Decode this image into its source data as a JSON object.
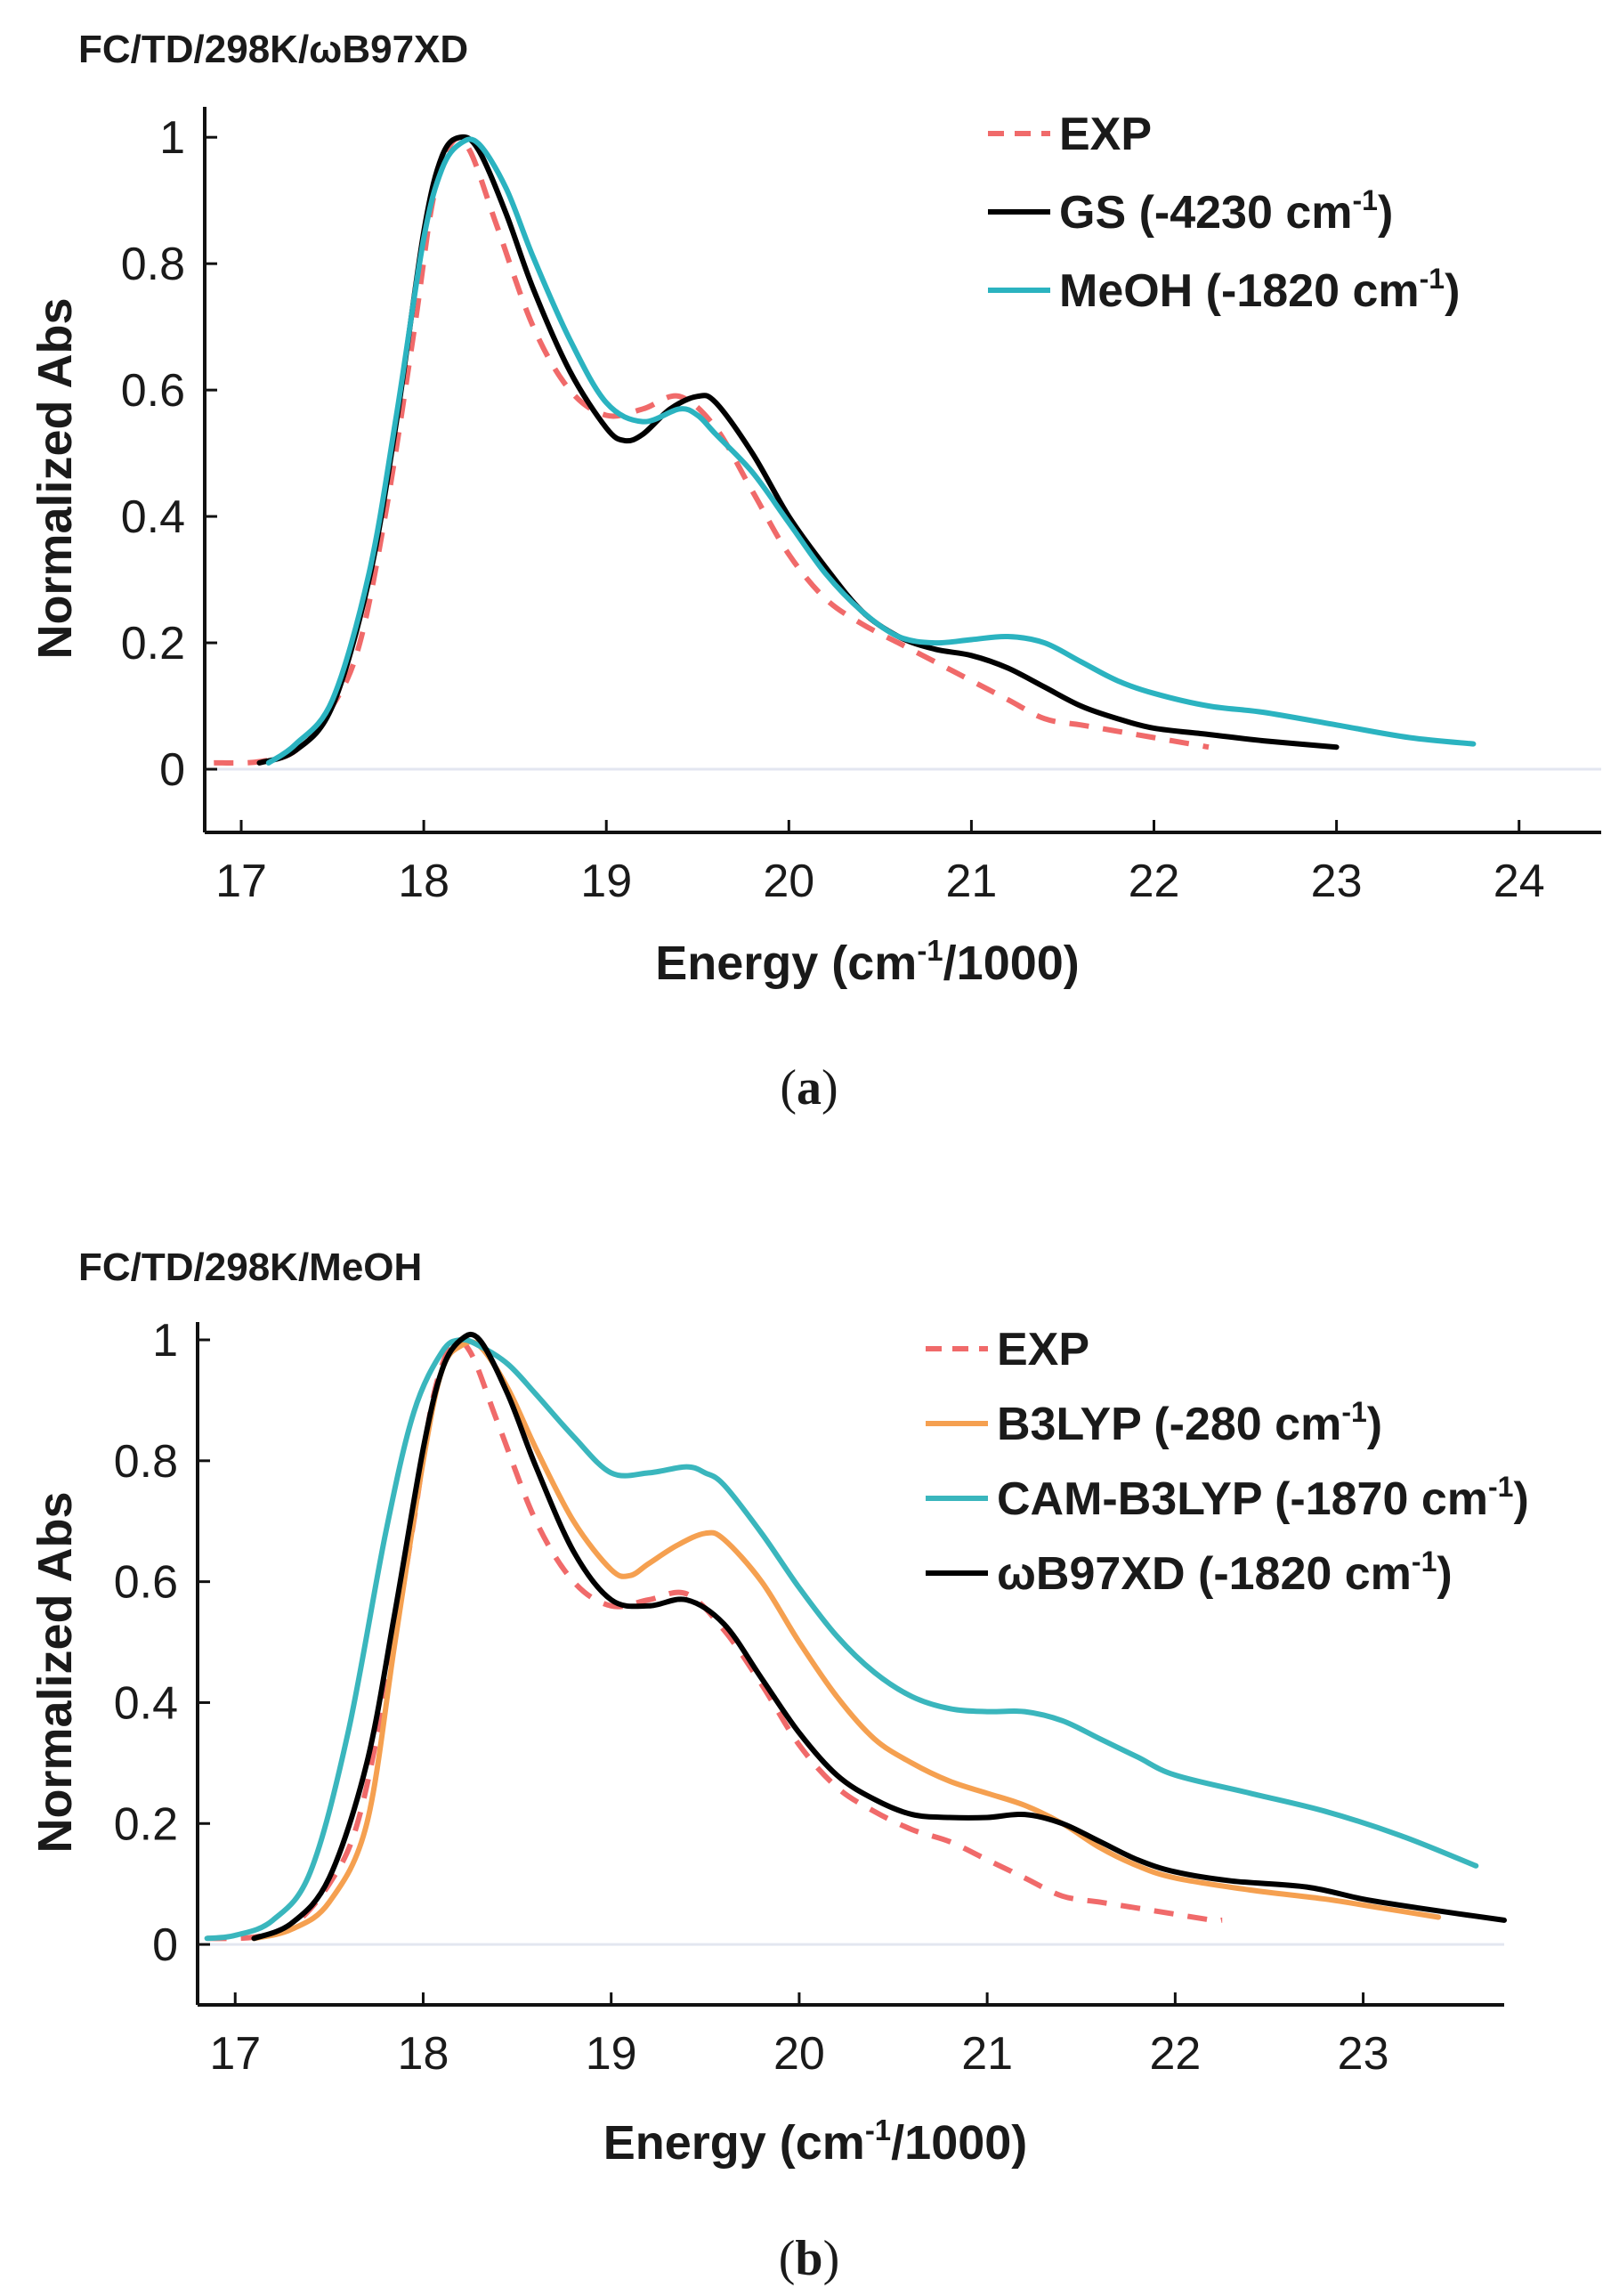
{
  "chart_data": [
    {
      "type": "line",
      "title": "FC/TD/298K/ωB97XD",
      "xlabel": "Energy (cm⁻¹/1000)",
      "ylabel": "Normalized Abs",
      "xlim": [
        16.8,
        24.45
      ],
      "ylim": [
        -0.1,
        1.02
      ],
      "xticks": [
        "17",
        "18",
        "19",
        "20",
        "21",
        "22",
        "23",
        "24"
      ],
      "yticks": [
        "0",
        "0.2",
        "0.4",
        "0.6",
        "0.8",
        "1"
      ],
      "legend": "top-right",
      "caption": "a",
      "series": [
        {
          "name": "EXP",
          "color": "#f06a6a",
          "dash": true,
          "x": [
            16.85,
            17.1,
            17.3,
            17.5,
            17.65,
            17.8,
            17.95,
            18.05,
            18.15,
            18.25,
            18.4,
            18.6,
            18.8,
            19.0,
            19.2,
            19.4,
            19.6,
            19.8,
            20.0,
            20.2,
            20.4,
            20.6,
            20.8,
            21.0,
            21.2,
            21.4,
            21.6,
            21.8,
            22.0,
            22.2,
            22.3
          ],
          "y": [
            0.01,
            0.012,
            0.03,
            0.1,
            0.2,
            0.42,
            0.7,
            0.9,
            0.99,
            0.98,
            0.86,
            0.7,
            0.6,
            0.56,
            0.57,
            0.59,
            0.54,
            0.44,
            0.34,
            0.27,
            0.23,
            0.2,
            0.17,
            0.14,
            0.11,
            0.08,
            0.07,
            0.06,
            0.05,
            0.04,
            0.035
          ]
        },
        {
          "name": "GS (-4230 cm⁻¹)",
          "color": "#000000",
          "dash": false,
          "x": [
            17.1,
            17.3,
            17.5,
            17.7,
            17.85,
            18.0,
            18.1,
            18.2,
            18.3,
            18.45,
            18.6,
            18.8,
            19.0,
            19.1,
            19.2,
            19.35,
            19.5,
            19.6,
            19.8,
            20.0,
            20.2,
            20.4,
            20.6,
            20.8,
            21.0,
            21.2,
            21.4,
            21.6,
            21.8,
            22.0,
            22.3,
            22.6,
            23.0
          ],
          "y": [
            0.01,
            0.03,
            0.1,
            0.3,
            0.55,
            0.85,
            0.97,
            1.0,
            0.98,
            0.88,
            0.76,
            0.63,
            0.54,
            0.52,
            0.53,
            0.57,
            0.59,
            0.58,
            0.5,
            0.4,
            0.32,
            0.25,
            0.21,
            0.19,
            0.18,
            0.16,
            0.13,
            0.1,
            0.08,
            0.065,
            0.055,
            0.045,
            0.035
          ]
        },
        {
          "name": "MeOH (-1820 cm⁻¹)",
          "color": "#2bb3c0",
          "dash": false,
          "x": [
            17.15,
            17.3,
            17.5,
            17.7,
            17.85,
            18.0,
            18.1,
            18.2,
            18.3,
            18.45,
            18.6,
            18.8,
            19.0,
            19.2,
            19.4,
            19.5,
            19.6,
            19.8,
            20.0,
            20.2,
            20.4,
            20.6,
            20.8,
            21.0,
            21.2,
            21.4,
            21.6,
            21.8,
            22.0,
            22.3,
            22.6,
            23.0,
            23.4,
            23.75
          ],
          "y": [
            0.01,
            0.04,
            0.11,
            0.31,
            0.56,
            0.84,
            0.95,
            0.99,
            0.99,
            0.92,
            0.81,
            0.68,
            0.58,
            0.55,
            0.57,
            0.56,
            0.53,
            0.47,
            0.39,
            0.31,
            0.25,
            0.21,
            0.2,
            0.205,
            0.21,
            0.2,
            0.17,
            0.14,
            0.12,
            0.1,
            0.09,
            0.07,
            0.05,
            0.04
          ]
        }
      ]
    },
    {
      "type": "line",
      "title": "FC/TD/298K/MeOH",
      "xlabel": "Energy (cm⁻¹/1000)",
      "ylabel": "Normalized Abs",
      "xlim": [
        16.8,
        23.75
      ],
      "ylim": [
        -0.1,
        1.0
      ],
      "xticks": [
        "17",
        "18",
        "19",
        "20",
        "21",
        "22",
        "23"
      ],
      "yticks": [
        "0",
        "0.2",
        "0.4",
        "0.6",
        "0.8",
        "1"
      ],
      "legend": "top-right",
      "caption": "b",
      "series": [
        {
          "name": "EXP",
          "color": "#f06a6a",
          "dash": true,
          "x": [
            16.85,
            17.1,
            17.3,
            17.5,
            17.65,
            17.8,
            17.95,
            18.05,
            18.15,
            18.25,
            18.4,
            18.6,
            18.8,
            19.0,
            19.2,
            19.4,
            19.6,
            19.8,
            20.0,
            20.2,
            20.4,
            20.6,
            20.8,
            21.0,
            21.2,
            21.4,
            21.6,
            21.8,
            22.0,
            22.2,
            22.25
          ],
          "y": [
            0.01,
            0.012,
            0.03,
            0.1,
            0.2,
            0.42,
            0.7,
            0.9,
            0.99,
            0.98,
            0.86,
            0.7,
            0.6,
            0.56,
            0.57,
            0.58,
            0.52,
            0.43,
            0.33,
            0.26,
            0.22,
            0.19,
            0.17,
            0.14,
            0.11,
            0.08,
            0.07,
            0.06,
            0.05,
            0.04,
            0.04
          ]
        },
        {
          "name": "B3LYP (-280 cm⁻¹)",
          "color": "#f5a050",
          "dash": false,
          "x": [
            17.1,
            17.3,
            17.5,
            17.7,
            17.85,
            18.0,
            18.1,
            18.2,
            18.3,
            18.45,
            18.6,
            18.8,
            19.0,
            19.1,
            19.2,
            19.35,
            19.5,
            19.6,
            19.8,
            20.0,
            20.2,
            20.4,
            20.6,
            20.8,
            21.0,
            21.2,
            21.4,
            21.6,
            21.8,
            22.0,
            22.4,
            22.8,
            23.1,
            23.4
          ],
          "y": [
            0.01,
            0.025,
            0.07,
            0.2,
            0.5,
            0.8,
            0.95,
            0.99,
            0.99,
            0.92,
            0.82,
            0.7,
            0.62,
            0.61,
            0.63,
            0.66,
            0.68,
            0.67,
            0.6,
            0.5,
            0.41,
            0.34,
            0.3,
            0.27,
            0.25,
            0.23,
            0.2,
            0.16,
            0.13,
            0.11,
            0.09,
            0.075,
            0.06,
            0.045
          ]
        },
        {
          "name": "CAM-B3LYP (-1870 cm⁻¹)",
          "color": "#3ab6bd",
          "dash": false,
          "x": [
            16.85,
            17.0,
            17.2,
            17.4,
            17.6,
            17.8,
            17.95,
            18.1,
            18.2,
            18.3,
            18.45,
            18.6,
            18.8,
            19.0,
            19.2,
            19.4,
            19.5,
            19.6,
            19.8,
            20.0,
            20.2,
            20.4,
            20.6,
            20.8,
            21.0,
            21.2,
            21.4,
            21.6,
            21.8,
            22.0,
            22.4,
            22.8,
            23.2,
            23.6
          ],
          "y": [
            0.01,
            0.015,
            0.04,
            0.12,
            0.35,
            0.68,
            0.88,
            0.98,
            1.0,
            0.99,
            0.96,
            0.91,
            0.84,
            0.78,
            0.78,
            0.79,
            0.78,
            0.76,
            0.68,
            0.59,
            0.51,
            0.45,
            0.41,
            0.39,
            0.385,
            0.385,
            0.37,
            0.34,
            0.31,
            0.28,
            0.25,
            0.22,
            0.18,
            0.13
          ]
        },
        {
          "name": "ωB97XD (-1820 cm⁻¹)",
          "color": "#000000",
          "dash": false,
          "x": [
            17.1,
            17.3,
            17.5,
            17.7,
            17.85,
            18.0,
            18.1,
            18.2,
            18.3,
            18.45,
            18.6,
            18.8,
            19.0,
            19.2,
            19.4,
            19.6,
            19.8,
            20.0,
            20.2,
            20.4,
            20.6,
            20.8,
            21.0,
            21.2,
            21.4,
            21.6,
            21.8,
            22.0,
            22.3,
            22.7,
            23.0,
            23.3,
            23.75
          ],
          "y": [
            0.01,
            0.035,
            0.11,
            0.3,
            0.55,
            0.82,
            0.95,
            1.0,
            1.0,
            0.91,
            0.79,
            0.65,
            0.57,
            0.56,
            0.57,
            0.53,
            0.44,
            0.35,
            0.28,
            0.24,
            0.215,
            0.21,
            0.21,
            0.215,
            0.2,
            0.17,
            0.14,
            0.12,
            0.105,
            0.095,
            0.075,
            0.06,
            0.04
          ]
        }
      ]
    }
  ]
}
